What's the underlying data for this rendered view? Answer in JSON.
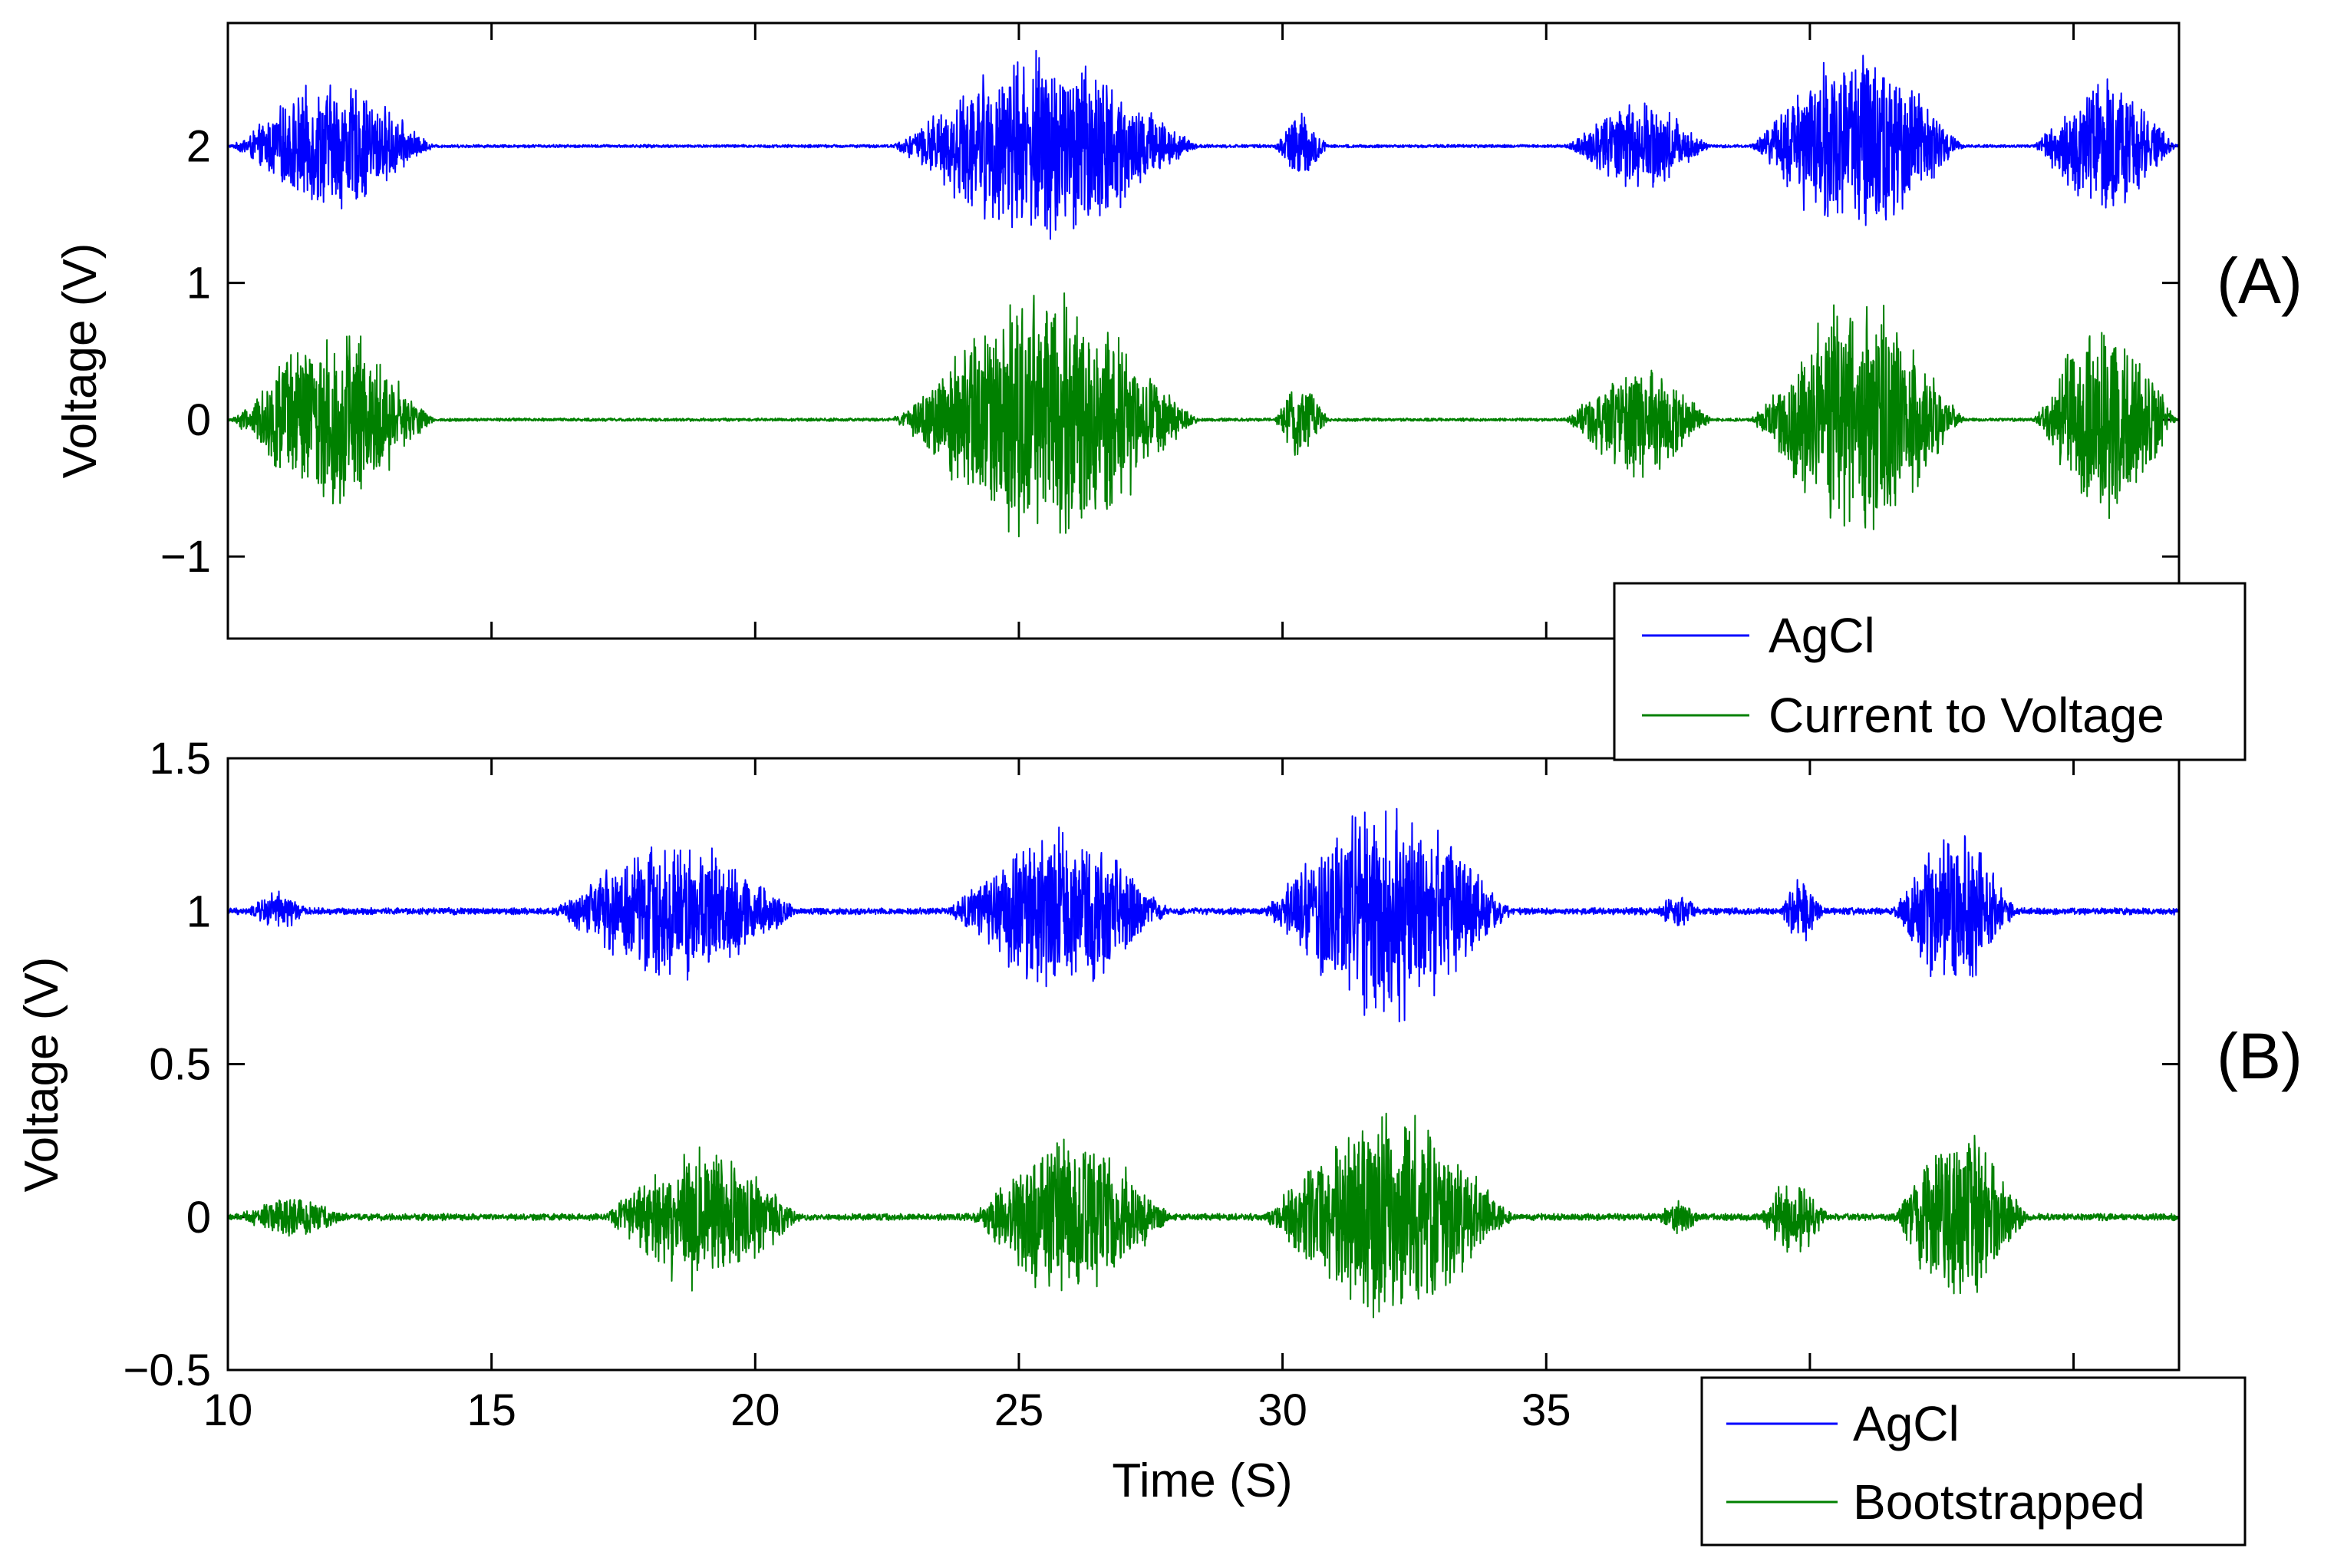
{
  "chart_data": [
    {
      "id": "A",
      "type": "line",
      "panel_label": "(A)",
      "xlabel": "",
      "ylabel": "Voltage (V)",
      "xlim": [
        10,
        47
      ],
      "ylim": [
        -1.6,
        2.9
      ],
      "x_ticks": [
        10,
        15,
        20,
        25,
        30,
        35,
        40,
        45
      ],
      "x_tick_labels": [
        "",
        "",
        "",
        "",
        "",
        "",
        "",
        ""
      ],
      "y_ticks": [
        -1,
        0,
        1,
        2
      ],
      "y_tick_labels": [
        "−1",
        "0",
        "1",
        "2"
      ],
      "legend": {
        "position": "bottom-right",
        "entries": [
          "AgCl",
          "Current to Voltage"
        ]
      },
      "series": [
        {
          "name": "AgCl",
          "color": "#0000ff",
          "baseline": 2.0,
          "noise_floor": 0.012,
          "bursts": [
            {
              "t_start": 10.0,
              "t_end": 14.0,
              "amplitude": 0.5
            },
            {
              "t_start": 22.5,
              "t_end": 28.5,
              "amplitude": 0.75
            },
            {
              "t_start": 29.8,
              "t_end": 30.9,
              "amplitude": 0.25
            },
            {
              "t_start": 35.3,
              "t_end": 38.2,
              "amplitude": 0.35
            },
            {
              "t_start": 38.8,
              "t_end": 43.0,
              "amplitude": 0.75
            },
            {
              "t_start": 44.2,
              "t_end": 47.0,
              "amplitude": 0.55
            }
          ]
        },
        {
          "name": "Current to Voltage",
          "color": "#008000",
          "baseline": 0.0,
          "noise_floor": 0.012,
          "bursts": [
            {
              "t_start": 10.0,
              "t_end": 14.0,
              "amplitude": 0.7
            },
            {
              "t_start": 22.5,
              "t_end": 28.5,
              "amplitude": 1.0
            },
            {
              "t_start": 29.8,
              "t_end": 30.9,
              "amplitude": 0.3
            },
            {
              "t_start": 35.3,
              "t_end": 38.2,
              "amplitude": 0.45
            },
            {
              "t_start": 38.8,
              "t_end": 43.0,
              "amplitude": 0.95
            },
            {
              "t_start": 44.2,
              "t_end": 47.0,
              "amplitude": 0.85
            }
          ]
        }
      ]
    },
    {
      "id": "B",
      "type": "line",
      "panel_label": "(B)",
      "xlabel": "Time (S)",
      "ylabel": "Voltage (V)",
      "xlim": [
        10,
        47
      ],
      "ylim": [
        -0.5,
        1.5
      ],
      "x_ticks": [
        10,
        15,
        20,
        25,
        30,
        35,
        40,
        45
      ],
      "x_tick_labels": [
        "10",
        "15",
        "20",
        "25",
        "30",
        "35",
        "",
        ""
      ],
      "y_ticks": [
        -0.5,
        0,
        0.5,
        1,
        1.5
      ],
      "y_tick_labels": [
        "−0.5",
        "0",
        "0.5",
        "1",
        "1.5"
      ],
      "legend": {
        "position": "below-right",
        "entries": [
          "AgCl",
          "Bootstrapped"
        ]
      },
      "series": [
        {
          "name": "AgCl",
          "color": "#0000ff",
          "baseline": 1.0,
          "noise_floor": 0.012,
          "bursts": [
            {
              "t_start": 10.3,
              "t_end": 11.6,
              "amplitude": 0.07
            },
            {
              "t_start": 16.0,
              "t_end": 21.0,
              "amplitude": 0.25
            },
            {
              "t_start": 23.5,
              "t_end": 28.0,
              "amplitude": 0.28
            },
            {
              "t_start": 29.5,
              "t_end": 34.5,
              "amplitude": 0.38
            },
            {
              "t_start": 37.0,
              "t_end": 38.0,
              "amplitude": 0.06
            },
            {
              "t_start": 39.4,
              "t_end": 40.3,
              "amplitude": 0.12
            },
            {
              "t_start": 41.5,
              "t_end": 44.0,
              "amplitude": 0.28
            }
          ]
        },
        {
          "name": "Bootstrapped",
          "color": "#008000",
          "baseline": 0.0,
          "noise_floor": 0.012,
          "bursts": [
            {
              "t_start": 10.0,
              "t_end": 12.5,
              "amplitude": 0.07
            },
            {
              "t_start": 17.0,
              "t_end": 21.0,
              "amplitude": 0.25
            },
            {
              "t_start": 24.0,
              "t_end": 28.0,
              "amplitude": 0.3
            },
            {
              "t_start": 29.5,
              "t_end": 34.5,
              "amplitude": 0.37
            },
            {
              "t_start": 37.0,
              "t_end": 38.0,
              "amplitude": 0.06
            },
            {
              "t_start": 39.0,
              "t_end": 40.4,
              "amplitude": 0.15
            },
            {
              "t_start": 41.5,
              "t_end": 44.2,
              "amplitude": 0.33
            }
          ]
        }
      ]
    }
  ]
}
